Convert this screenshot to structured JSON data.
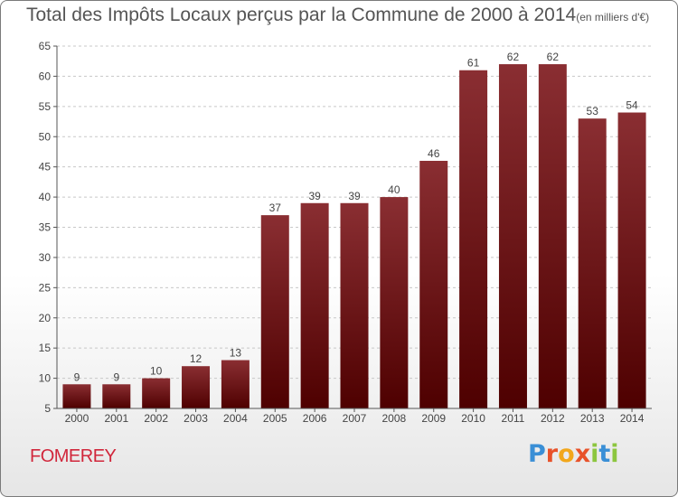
{
  "header": {
    "title": "Total des Impôts Locaux perçus par la Commune de 2000 à 2014",
    "unit": "(en milliers d'€)"
  },
  "footer": {
    "commune": "FOMEREY",
    "brand_letters": [
      "P",
      "r",
      "o",
      "x",
      "i",
      "t",
      "i"
    ]
  },
  "colors": {
    "bar_top": "#8a2e32",
    "bar_bottom": "#4e0000",
    "grid": "#c8c8c8",
    "axis": "#555555",
    "commune_text": "#d1263b"
  },
  "chart_data": {
    "type": "bar",
    "title": "Total des Impôts Locaux perçus par la Commune de 2000 à 2014",
    "ylabel": "en milliers d'€",
    "xlabel": "",
    "categories": [
      "2000",
      "2001",
      "2002",
      "2003",
      "2004",
      "2005",
      "2006",
      "2007",
      "2008",
      "2009",
      "2010",
      "2011",
      "2012",
      "2013",
      "2014"
    ],
    "values": [
      9,
      9,
      10,
      12,
      13,
      37,
      39,
      39,
      40,
      46,
      61,
      62,
      62,
      53,
      54
    ],
    "ylim": [
      5,
      65
    ],
    "yticks": [
      5,
      10,
      15,
      20,
      25,
      30,
      35,
      40,
      45,
      50,
      55,
      60,
      65
    ],
    "grid": true,
    "data_labels": true
  }
}
